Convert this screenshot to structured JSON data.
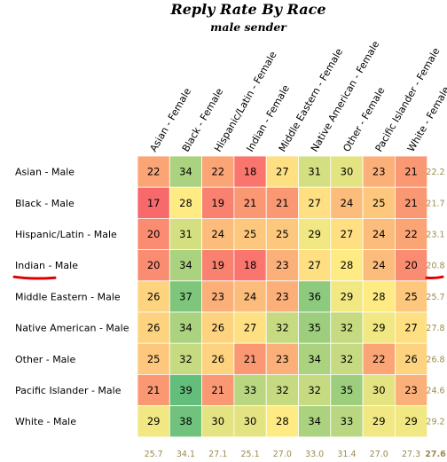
{
  "chart_data": {
    "type": "heatmap",
    "title": "Reply Rate By Race",
    "subtitle": "male sender",
    "columns": [
      "Asian - Female",
      "Black - Female",
      "Hispanic/Latin - Female",
      "Indian - Female",
      "Middle Eastern - Female",
      "Native American - Female",
      "Other - Female",
      "Pacific Islander - Female",
      "White - Female"
    ],
    "rows": [
      "Asian - Male",
      "Black - Male",
      "Hispanic/Latin - Male",
      "Indian - Male",
      "Middle Eastern - Male",
      "Native American - Male",
      "Other - Male",
      "Pacific Islander - Male",
      "White - Male"
    ],
    "values": [
      [
        22,
        34,
        22,
        18,
        27,
        31,
        30,
        23,
        21
      ],
      [
        17,
        28,
        19,
        21,
        21,
        27,
        24,
        25,
        21
      ],
      [
        20,
        31,
        24,
        25,
        25,
        29,
        27,
        24,
        22
      ],
      [
        20,
        34,
        19,
        18,
        23,
        27,
        28,
        24,
        20
      ],
      [
        26,
        37,
        23,
        24,
        23,
        36,
        29,
        28,
        25
      ],
      [
        26,
        34,
        26,
        27,
        32,
        35,
        32,
        29,
        27
      ],
      [
        25,
        32,
        26,
        21,
        23,
        34,
        32,
        22,
        26
      ],
      [
        21,
        39,
        21,
        33,
        32,
        32,
        35,
        30,
        23
      ],
      [
        29,
        38,
        30,
        30,
        28,
        34,
        33,
        29,
        29
      ]
    ],
    "row_averages": [
      "22.2",
      "21.7",
      "23.1",
      "20.8",
      "25.7",
      "27.8",
      "26.8",
      "24.6",
      "29.2"
    ],
    "column_averages": [
      "25.7",
      "34.1",
      "27.1",
      "25.1",
      "27.0",
      "33.0",
      "31.4",
      "27.0",
      "27.3"
    ],
    "overall_average": "27.6",
    "highlighted_row": "Indian - Male",
    "color_scale": {
      "low": "#f8696b",
      "mid": "#ffeb84",
      "high": "#63be7b",
      "min": 17,
      "max": 39
    },
    "summary_text_color": "#9c8a4c",
    "annotation_color": "#e00000"
  }
}
